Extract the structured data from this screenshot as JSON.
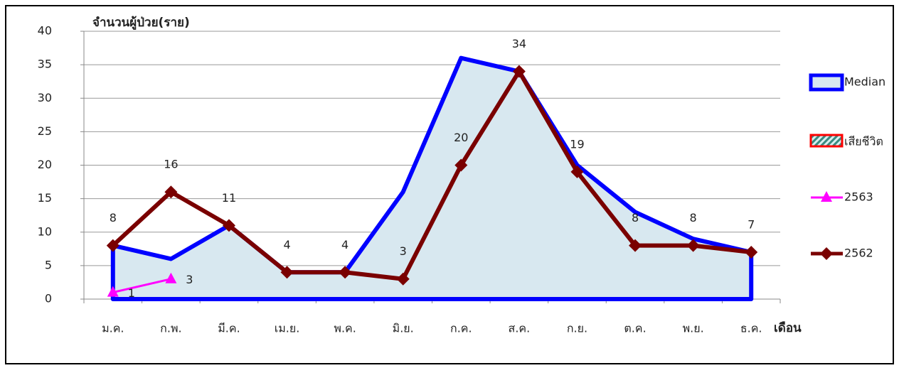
{
  "chart_data": {
    "type": "line",
    "y_axis_title": "จำนวนผู้ป่วย(ราย)",
    "x_axis_title": "เดือน",
    "categories": [
      "ม.ค.",
      "ก.พ.",
      "มี.ค.",
      "เม.ย.",
      "พ.ค.",
      "มิ.ย.",
      "ก.ค.",
      "ส.ค.",
      "ก.ย.",
      "ต.ค.",
      "พ.ย.",
      "ธ.ค."
    ],
    "series": [
      {
        "name": "Median",
        "kind": "area",
        "color": "#0000ff",
        "fill": "#d8e8f0",
        "values": [
          8,
          6,
          11,
          4,
          4,
          16,
          36,
          34,
          20,
          13,
          9,
          7
        ]
      },
      {
        "name": "เสียชีวิต",
        "kind": "area",
        "color": "#ff0000",
        "fill": "#3a8a80",
        "values": [
          0,
          0,
          0,
          0,
          0,
          0,
          0,
          0,
          0,
          0,
          0,
          0
        ]
      },
      {
        "name": "2563",
        "kind": "line",
        "marker": "triangle",
        "color": "#ff00ff",
        "values": [
          1,
          3,
          null,
          null,
          null,
          null,
          null,
          null,
          null,
          null,
          null,
          null
        ]
      },
      {
        "name": "2562",
        "kind": "line",
        "marker": "diamond",
        "color": "#7a0000",
        "values": [
          8,
          16,
          11,
          4,
          4,
          3,
          20,
          34,
          19,
          8,
          8,
          7
        ]
      }
    ],
    "ylim": [
      0,
      40
    ],
    "yticks": [
      0,
      5,
      10,
      15,
      20,
      25,
      30,
      35,
      40
    ],
    "grid": true,
    "legend": "right"
  }
}
